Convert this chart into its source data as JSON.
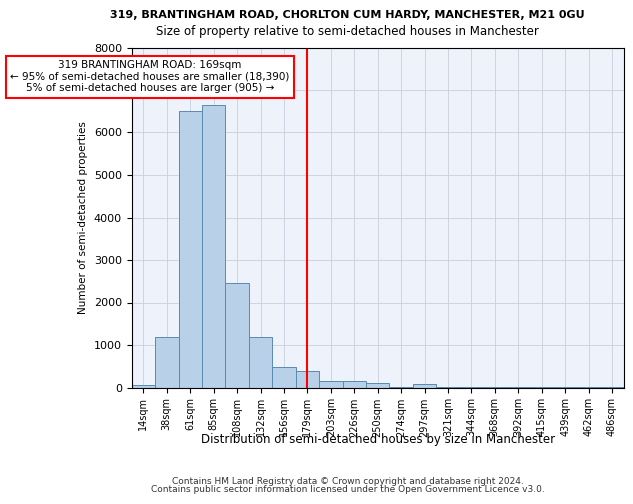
{
  "title": "319, BRANTINGHAM ROAD, CHORLTON CUM HARDY, MANCHESTER, M21 0GU",
  "subtitle": "Size of property relative to semi-detached houses in Manchester",
  "xlabel": "Distribution of semi-detached houses by size in Manchester",
  "ylabel": "Number of semi-detached properties",
  "footer1": "Contains HM Land Registry data © Crown copyright and database right 2024.",
  "footer2": "Contains public sector information licensed under the Open Government Licence v3.0.",
  "bar_categories": [
    "14sqm",
    "38sqm",
    "61sqm",
    "85sqm",
    "108sqm",
    "132sqm",
    "156sqm",
    "179sqm",
    "203sqm",
    "226sqm",
    "250sqm",
    "274sqm",
    "297sqm",
    "321sqm",
    "344sqm",
    "368sqm",
    "392sqm",
    "415sqm",
    "439sqm",
    "462sqm",
    "486sqm"
  ],
  "bar_values": [
    50,
    1200,
    6500,
    6650,
    2450,
    1200,
    480,
    380,
    150,
    150,
    100,
    10,
    75,
    5,
    5,
    5,
    5,
    3,
    3,
    3,
    3
  ],
  "bar_color": "#b8d0e8",
  "bar_edge_color": "#5a8ab0",
  "ylim": [
    0,
    8000
  ],
  "yticks": [
    0,
    1000,
    2000,
    3000,
    4000,
    5000,
    6000,
    7000,
    8000
  ],
  "property_line_bin": 7.0,
  "annotation_text1": "319 BRANTINGHAM ROAD: 169sqm",
  "annotation_text2": "← 95% of semi-detached houses are smaller (18,390)",
  "annotation_text3": "5% of semi-detached houses are larger (905) →",
  "annotation_box_color": "white",
  "annotation_box_edge": "red",
  "vline_color": "red",
  "grid_color": "#c8d0dc",
  "background_color": "#eef2fa"
}
